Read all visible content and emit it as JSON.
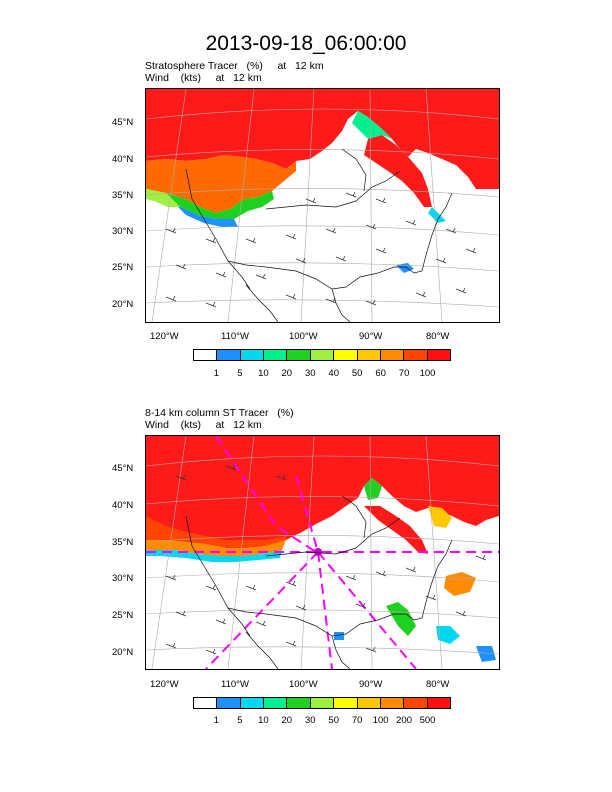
{
  "title": "2013-09-18_06:00:00",
  "panels": [
    {
      "subtitle_line1": "Stratosphere Tracer   (%)     at   12 km",
      "subtitle_line2": "Wind    (kts)     at   12 km",
      "lat_labels": [
        "45°N",
        "40°N",
        "35°N",
        "30°N",
        "25°N",
        "20°N"
      ],
      "lon_labels": [
        "120°W",
        "110°W",
        "100°W",
        "90°W",
        "80°W"
      ],
      "legend_labels": [
        "1",
        "5",
        "10",
        "20",
        "30",
        "40",
        "50",
        "60",
        "70",
        "100"
      ],
      "colors": [
        "#ffffff",
        "#1e90ff",
        "#00d8f0",
        "#00f090",
        "#20d020",
        "#a0f040",
        "#ffff00",
        "#ffc800",
        "#ff8c00",
        "#ff4500",
        "#ff1010"
      ]
    },
    {
      "subtitle_line1": "8-14 km column ST Tracer   (%)",
      "subtitle_line2": "Wind    (kts)     at   12 km",
      "lat_labels": [
        "45°N",
        "40°N",
        "35°N",
        "30°N",
        "25°N",
        "20°N"
      ],
      "lon_labels": [
        "120°W",
        "110°W",
        "100°W",
        "90°W",
        "80°W"
      ],
      "legend_labels": [
        "1",
        "5",
        "10",
        "20",
        "30",
        "50",
        "70",
        "100",
        "200",
        "500"
      ],
      "colors": [
        "#ffffff",
        "#1e90ff",
        "#00d8f0",
        "#00f090",
        "#20d020",
        "#a0f040",
        "#ffff00",
        "#ffc800",
        "#ff8c00",
        "#ff4500",
        "#ff1010"
      ]
    }
  ]
}
